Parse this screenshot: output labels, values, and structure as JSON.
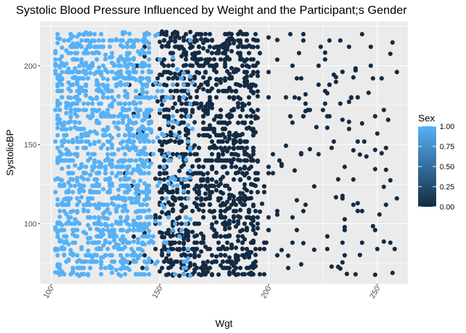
{
  "chart_data": {
    "type": "scatter",
    "title": "Systolic Blood Pressure Influenced by Weight and the Participant;s Gender",
    "xlabel": "Wgt",
    "ylabel": "SystolicBP",
    "xlim": [
      95,
      264
    ],
    "ylim": [
      62,
      228
    ],
    "x_ticks": [
      100,
      150,
      200,
      250
    ],
    "x_tick_labels": [
      "100",
      "150",
      "200",
      "250"
    ],
    "y_ticks": [
      100,
      150,
      200
    ],
    "y_tick_labels": [
      "100",
      "150",
      "200"
    ],
    "grid": true,
    "color_scale": {
      "name": "Sex",
      "low_value": 0,
      "high_value": 1,
      "low_color": "#132B43",
      "high_color": "#56B1F7",
      "ticks": [
        0.0,
        0.25,
        0.5,
        0.75,
        1.0
      ],
      "tick_labels": [
        "0.00",
        "0.25",
        "0.50",
        "0.75",
        "1.00"
      ],
      "placement": "right"
    },
    "groups": [
      {
        "sex": 1,
        "weight_range": [
          102,
          165
        ],
        "systolic_range": [
          67,
          222
        ],
        "dense_range": [
          102,
          146
        ],
        "n_points_approx": 2500
      },
      {
        "sex": 0,
        "weight_range": [
          133,
          261
        ],
        "systolic_range": [
          67,
          222
        ],
        "dense_range": [
          150,
          195
        ],
        "n_points_approx": 2500
      }
    ],
    "systolic_values_observed": [
      68,
      72,
      76,
      80,
      84,
      88,
      92,
      96,
      100,
      104,
      108,
      112,
      116,
      120,
      124,
      128,
      132,
      136,
      140,
      144,
      148,
      152,
      156,
      160,
      164,
      168,
      172,
      176,
      180,
      184,
      188,
      192,
      196,
      200,
      204,
      208,
      212,
      216,
      220
    ]
  }
}
